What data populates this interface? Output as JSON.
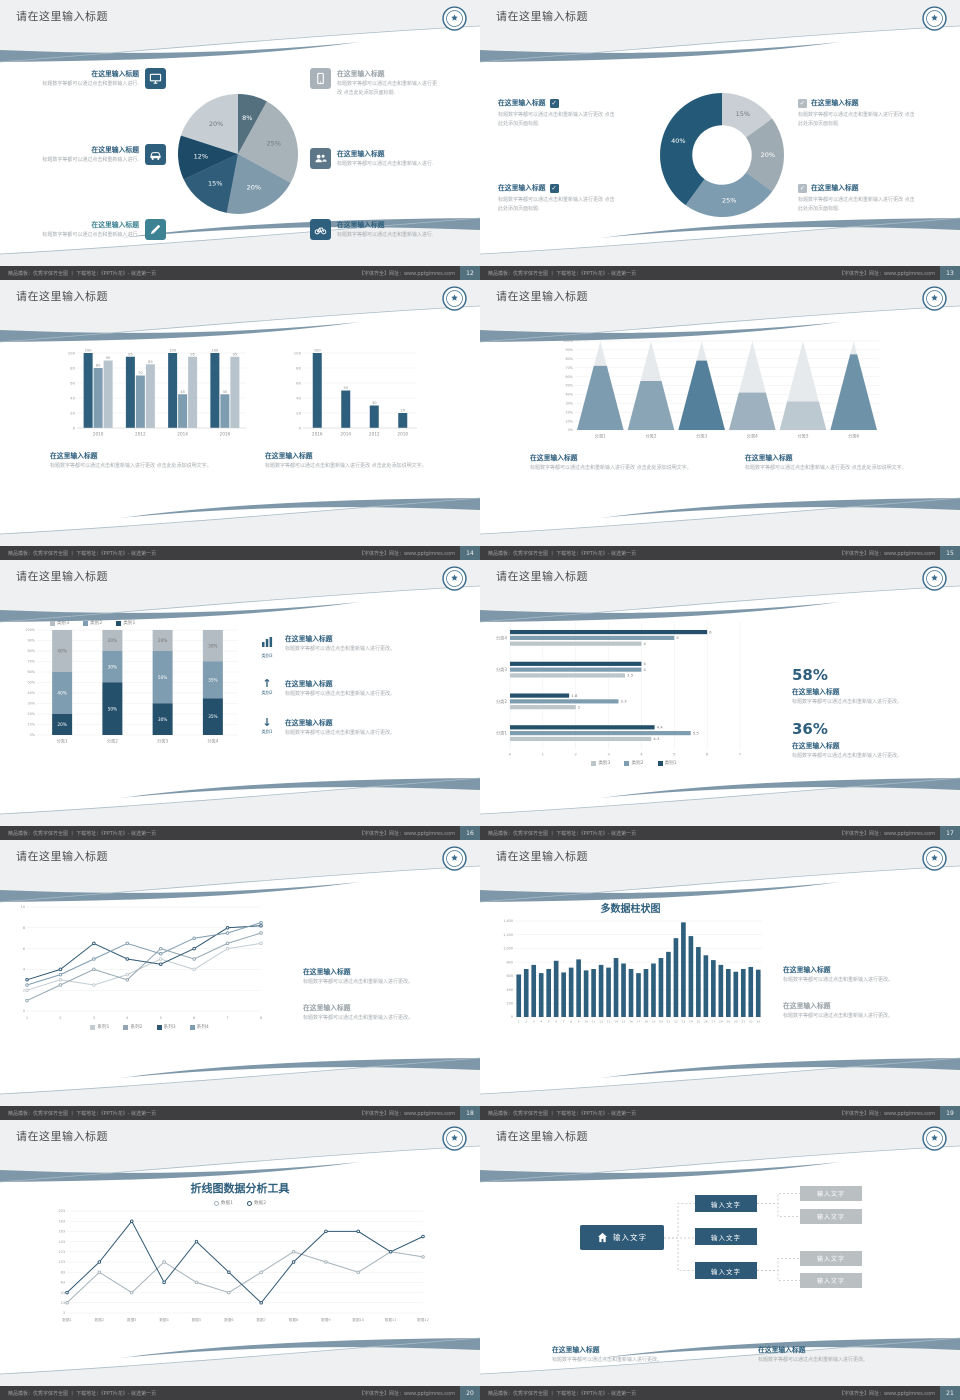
{
  "common": {
    "slide_title": "请在这里输入标题",
    "heading": "在这里输入标题",
    "body_short": "标题数字等都可以通过点击和重新输入进行.",
    "body_mid": "标题数字等都可以通过点击和重新输入进行更改。",
    "body_page": "标题数字等都可以通过点击和重新输入进行更改 点击此处添加页面标题.",
    "body_note": "标题数字等都可以通过点击和重新输入进行更改 点击此处添加说明文字。",
    "input_text": "输入文字",
    "footer_left": "精品模板：优秀字体齐全图 丨 下载地址：《PPT片花》- 就选第一页",
    "footer_right": "【字体齐全】网址：www.pptgimres.com"
  },
  "icons": {
    "check": "✓",
    "up": "↑",
    "down": "↓"
  },
  "stats": {
    "pct1": "58%",
    "pct2": "36%"
  },
  "slides": [
    {
      "page": "12"
    },
    {
      "page": "13"
    },
    {
      "page": "14"
    },
    {
      "page": "15"
    },
    {
      "page": "16"
    },
    {
      "page": "17"
    },
    {
      "page": "18"
    },
    {
      "page": "19"
    },
    {
      "page": "20"
    },
    {
      "page": "21"
    }
  ],
  "chart_data": [
    {
      "type": "pie",
      "slices": [
        {
          "label": "8%",
          "value": 8,
          "color": "#54707e"
        },
        {
          "label": "25%",
          "value": 25,
          "color": "#a8b2b9"
        },
        {
          "label": "20%",
          "value": 20,
          "color": "#7f9aab"
        },
        {
          "label": "15%",
          "value": 15,
          "color": "#2f5d7a"
        },
        {
          "label": "12%",
          "value": 12,
          "color": "#1d4a66"
        },
        {
          "label": "20%",
          "value": 20,
          "color": "#c6ced4"
        }
      ]
    },
    {
      "type": "donut",
      "slices": [
        {
          "label": "15%",
          "value": 15,
          "color": "#c9cfd4"
        },
        {
          "label": "20%",
          "value": 20,
          "color": "#9fabb3"
        },
        {
          "label": "25%",
          "value": 25,
          "color": "#7e9cb0"
        },
        {
          "label": "40%",
          "value": 40,
          "color": "#245a78"
        }
      ]
    },
    {
      "type": "bars",
      "categories": [
        "2010",
        "2012",
        "2014",
        "2016"
      ],
      "series": [
        {
          "name": "系列1",
          "color": "#2e5f7d",
          "values": [
            100,
            95,
            100,
            100
          ]
        },
        {
          "name": "系列2",
          "color": "#7f9db0",
          "values": [
            80,
            70,
            45,
            45
          ]
        },
        {
          "name": "系列3",
          "color": "#b7c4cd",
          "values": [
            90,
            85,
            95,
            95
          ]
        }
      ],
      "ymax": 100,
      "yticks": [
        0,
        20,
        40,
        60,
        80,
        100
      ]
    },
    {
      "type": "bars",
      "categories": [
        "2016",
        "2014",
        "2012",
        "2010"
      ],
      "series": [
        {
          "name": "系列1",
          "color": "#2e5f7d",
          "values": [
            100,
            50,
            30,
            20
          ]
        }
      ],
      "ymax": 100,
      "yticks": [
        0,
        20,
        40,
        60,
        80,
        100
      ]
    },
    {
      "type": "pyramid",
      "categories": [
        "分类1",
        "分类2",
        "分类3",
        "分类4",
        "分类5",
        "分类6"
      ],
      "values": [
        0.72,
        0.55,
        0.78,
        0.42,
        0.32,
        0.85
      ],
      "colors": [
        "#7e9cb0",
        "#8aa5b6",
        "#55809b",
        "#9db1bf",
        "#bcc9d1",
        "#6e93a9"
      ]
    },
    {
      "type": "stacked",
      "categories": [
        "分类1",
        "分类2",
        "分类3",
        "分类4"
      ],
      "series": [
        {
          "name": "类别1",
          "color": "#24506c",
          "values": [
            20,
            50,
            30,
            35
          ]
        },
        {
          "name": "类别2",
          "color": "#7f9db0",
          "values": [
            40,
            30,
            50,
            35
          ]
        },
        {
          "name": "类别3",
          "color": "#b3bcc2",
          "values": [
            40,
            20,
            20,
            30
          ]
        }
      ]
    },
    {
      "type": "hbars",
      "categories": [
        "分类4",
        "分类3",
        "分类2",
        "分类1"
      ],
      "series": [
        {
          "name": "类别1",
          "color": "#24506c",
          "values": [
            6,
            4,
            1.8,
            4.4
          ]
        },
        {
          "name": "类别2",
          "color": "#7f9db0",
          "values": [
            5,
            4,
            3.3,
            5.5
          ]
        },
        {
          "name": "类别3",
          "color": "#bcc5ca",
          "values": [
            4,
            3.5,
            2,
            4.3
          ]
        }
      ],
      "xmax": 7,
      "xticks": [
        0,
        1,
        2,
        3,
        4,
        5,
        6,
        7
      ]
    },
    {
      "type": "lines",
      "x": [
        "1",
        "2",
        "3",
        "4",
        "5",
        "6",
        "7",
        "8"
      ],
      "yticks": [
        0,
        2,
        4,
        6,
        8,
        10
      ],
      "series": [
        {
          "name": "系列1",
          "color": "#c3ccd2",
          "values": [
            2,
            3,
            2.5,
            3.5,
            5,
            4,
            6,
            6.5
          ]
        },
        {
          "name": "系列2",
          "color": "#93a6b1",
          "values": [
            1,
            2.5,
            4,
            3,
            6,
            5,
            6.5,
            7.5
          ]
        },
        {
          "name": "系列3",
          "color": "#2f5873",
          "values": [
            3,
            4,
            6.5,
            5,
            4.5,
            6,
            8,
            8.2
          ]
        },
        {
          "name": "系列4",
          "color": "#7f9db0",
          "values": [
            2.5,
            3.5,
            5,
            6.5,
            5.5,
            7,
            7.5,
            8.5
          ]
        }
      ]
    },
    {
      "type": "columns",
      "title": "多数据柱状图",
      "color": "#2e5f7d",
      "ymax": 1400,
      "yticks": [
        0,
        200,
        400,
        600,
        800,
        1000,
        1200,
        1400
      ],
      "ytick_labels": [
        "0",
        "200",
        "400",
        "600",
        "800",
        "1,000",
        "1,200",
        "1,400"
      ],
      "values": [
        620,
        700,
        760,
        640,
        700,
        820,
        650,
        720,
        840,
        680,
        700,
        760,
        720,
        860,
        780,
        700,
        640,
        700,
        780,
        860,
        950,
        1150,
        1380,
        1180,
        1020,
        900,
        830,
        760,
        700,
        660,
        700,
        730,
        690
      ]
    },
    {
      "type": "lines",
      "title": "折线图数据分析工具",
      "x": [
        "数据1",
        "数据2",
        "数据3",
        "数据4",
        "数据5",
        "数据6",
        "数据7",
        "数据8",
        "数据9",
        "数据10",
        "数据11",
        "数据12"
      ],
      "yticks": [
        3,
        23,
        43,
        63,
        83,
        103,
        123,
        143,
        163,
        183,
        203
      ],
      "series": [
        {
          "name": "数据1",
          "color": "#a6b2ba",
          "values": [
            23,
            83,
            43,
            103,
            63,
            43,
            83,
            123,
            103,
            83,
            123,
            113
          ]
        },
        {
          "name": "数据2",
          "color": "#2f5873",
          "values": [
            43,
            103,
            183,
            63,
            143,
            83,
            23,
            103,
            163,
            163,
            123,
            153
          ]
        }
      ]
    }
  ]
}
